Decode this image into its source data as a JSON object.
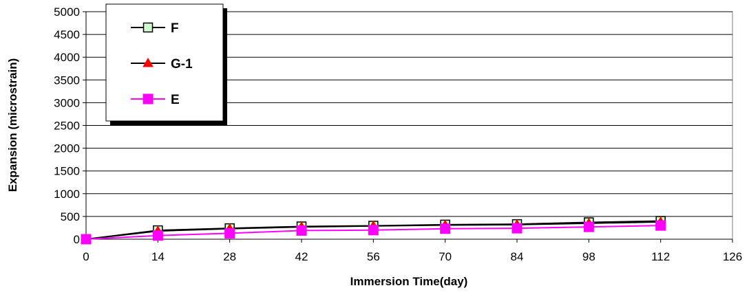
{
  "chart_data": {
    "type": "line",
    "title": "",
    "xlabel": "Immersion Time(day)",
    "ylabel": "Expansion (microstrain)",
    "xlim": [
      0,
      126
    ],
    "ylim": [
      0,
      5000
    ],
    "x_ticks": [
      "0",
      "14",
      "28",
      "42",
      "56",
      "70",
      "84",
      "98",
      "112",
      "126"
    ],
    "y_ticks": [
      "0",
      "500",
      "1000",
      "1500",
      "2000",
      "2500",
      "3000",
      "3500",
      "4000",
      "4500",
      "5000"
    ],
    "grid": "horizontal",
    "legend_position": "top-left",
    "series": [
      {
        "name": "F",
        "marker": "square-open",
        "color": "#000000",
        "marker_fill": "#ccffcc",
        "x": [
          0,
          14,
          28,
          42,
          56,
          70,
          84,
          98,
          112
        ],
        "y": [
          0,
          195,
          240,
          280,
          295,
          320,
          330,
          370,
          400
        ]
      },
      {
        "name": "G-1",
        "marker": "triangle",
        "color": "#000000",
        "marker_fill": "#ff0000",
        "x": [
          0,
          14,
          28,
          42,
          56,
          70,
          84,
          98,
          112
        ],
        "y": [
          0,
          180,
          230,
          270,
          290,
          310,
          320,
          350,
          380
        ]
      },
      {
        "name": "E",
        "marker": "square",
        "color": "#ff00ff",
        "marker_fill": "#ff00ff",
        "x": [
          0,
          14,
          28,
          42,
          56,
          70,
          84,
          98,
          112
        ],
        "y": [
          0,
          80,
          130,
          190,
          200,
          230,
          240,
          270,
          300
        ]
      }
    ]
  }
}
